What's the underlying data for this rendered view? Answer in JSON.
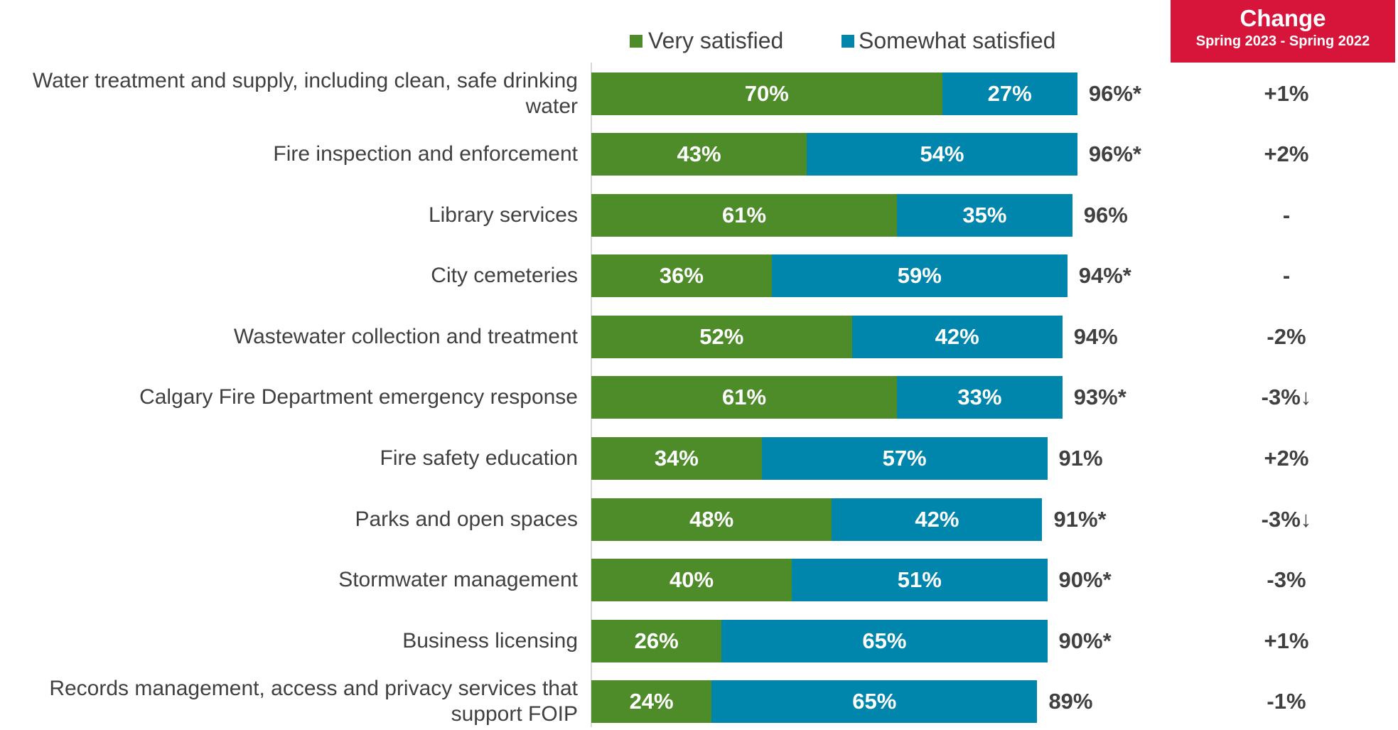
{
  "chart_data": {
    "type": "stacked_bar_horizontal",
    "categories": [
      "Water treatment and supply, including clean, safe drinking water",
      "Fire inspection and enforcement",
      "Library services",
      "City cemeteries",
      "Wastewater collection and treatment",
      "Calgary Fire Department emergency response",
      "Fire safety education",
      "Parks and open spaces",
      "Stormwater management",
      "Business licensing",
      "Records management, access and privacy services that support FOIP"
    ],
    "series": [
      {
        "name": "Very satisfied",
        "color": "#4e8c2a",
        "values": [
          70,
          43,
          61,
          36,
          52,
          61,
          34,
          48,
          40,
          26,
          24
        ],
        "value_labels": [
          "70%",
          "43%",
          "61%",
          "36%",
          "52%",
          "61%",
          "34%",
          "48%",
          "40%",
          "26%",
          "24%"
        ]
      },
      {
        "name": "Somewhat satisfied",
        "color": "#0085ad",
        "values": [
          27,
          54,
          35,
          59,
          42,
          33,
          57,
          42,
          51,
          65,
          65
        ],
        "value_labels": [
          "27%",
          "54%",
          "35%",
          "59%",
          "42%",
          "33%",
          "57%",
          "42%",
          "51%",
          "65%",
          "65%"
        ]
      }
    ],
    "total_labels": [
      "96%*",
      "96%*",
      "96%",
      "94%*",
      "94%",
      "93%*",
      "91%",
      "91%*",
      "90%*",
      "90%*",
      "89%"
    ],
    "change_header": "Change",
    "change_subheader": "Spring 2023 - Spring 2022",
    "change_header_color": "#d7143a",
    "changes": [
      "+1%",
      "+2%",
      "-",
      "-",
      "-2%",
      "-3%↓",
      "+2%",
      "-3%↓",
      "-3%",
      "+1%",
      "-1%"
    ]
  }
}
